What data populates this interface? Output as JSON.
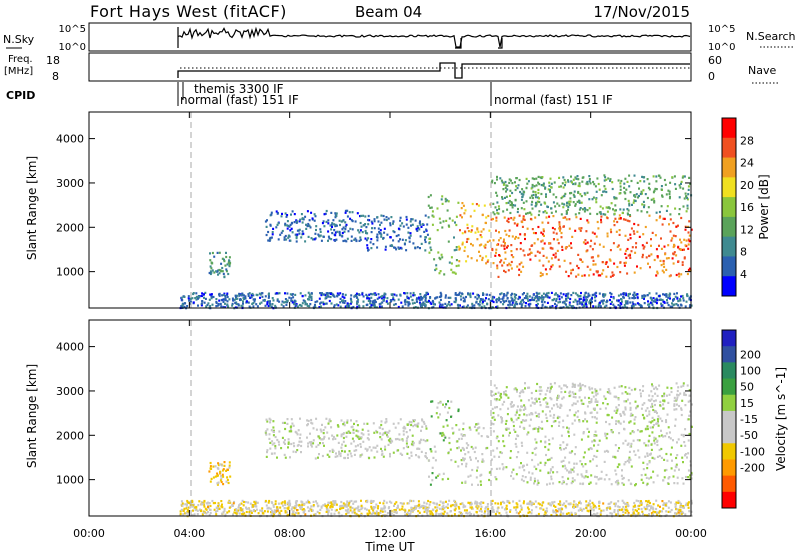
{
  "header": {
    "title": "Fort Hays West (fitACF)",
    "beam": "Beam 04",
    "date": "17/Nov/2015"
  },
  "strip_sky": {
    "left_label": "N.Sky",
    "right_label": "N.Search",
    "left_ticks": [
      "10^5",
      "10^0"
    ],
    "right_ticks": [
      "10^5",
      "10^0"
    ]
  },
  "strip_freq": {
    "left_label_1": "Freq.",
    "left_label_2": "[MHz]",
    "right_label": "Nave",
    "left_ticks": [
      "18",
      "8"
    ],
    "right_ticks": [
      "60",
      "0"
    ]
  },
  "cpid": {
    "label": "CPID",
    "segments": [
      {
        "text": "normal (fast) 151 IF",
        "start_hour": 3.6
      },
      {
        "text": "themis 3300 IF",
        "start_hour": 3.9
      },
      {
        "text": "normal (fast) 151 IF",
        "start_hour": 16.0
      }
    ]
  },
  "colors": {
    "power": [
      "#0000ff",
      "#2b60b0",
      "#3f8a90",
      "#5aa35a",
      "#8ac63c",
      "#f0e020",
      "#f0a020",
      "#f05020",
      "#ff0000"
    ],
    "velocity": [
      "#ff0000",
      "#ff5a00",
      "#ff9a00",
      "#f0c800",
      "#c8c8c8",
      "#c8c8c8",
      "#90d040",
      "#3aa040",
      "#2a8a60",
      "#3050a0",
      "#2020c0"
    ]
  },
  "chart_data": [
    {
      "type": "heatmap",
      "name": "power",
      "ylabel": "Slant Range [km]",
      "xlabel": "Time UT",
      "x_ticks": [
        "00:00",
        "04:00",
        "08:00",
        "12:00",
        "16:00",
        "20:00",
        "00:00"
      ],
      "x_range_hours": [
        0,
        24
      ],
      "y_ticks": [
        "1000",
        "2000",
        "3000",
        "4000"
      ],
      "y_range_km": [
        180,
        4600
      ],
      "colorbar": {
        "label": "Power [dB]",
        "ticks": [
          "4",
          "8",
          "12",
          "16",
          "20",
          "24",
          "28"
        ],
        "range": [
          0,
          32
        ]
      },
      "regions": [
        {
          "t0": 3.6,
          "t1": 24.0,
          "r0": 200,
          "r1": 550,
          "val": 6
        },
        {
          "t0": 4.7,
          "t1": 5.6,
          "r0": 900,
          "r1": 1450,
          "val": 10
        },
        {
          "t0": 7.0,
          "t1": 11.0,
          "r0": 1700,
          "r1": 2400,
          "val": 6
        },
        {
          "t0": 11.0,
          "t1": 13.5,
          "r0": 1500,
          "r1": 2300,
          "val": 6
        },
        {
          "t0": 13.5,
          "t1": 14.7,
          "r0": 900,
          "r1": 2800,
          "val": 13
        },
        {
          "t0": 14.7,
          "t1": 16.0,
          "r0": 1200,
          "r1": 2600,
          "val": 22
        },
        {
          "t0": 16.0,
          "t1": 24.0,
          "r0": 900,
          "r1": 2300,
          "val": 26
        },
        {
          "t0": 16.0,
          "t1": 24.0,
          "r0": 2300,
          "r1": 3200,
          "val": 12
        }
      ]
    },
    {
      "type": "heatmap",
      "name": "velocity",
      "ylabel": "Slant Range [km]",
      "xlabel": "Time UT",
      "x_ticks": [
        "00:00",
        "04:00",
        "08:00",
        "12:00",
        "16:00",
        "20:00",
        "00:00"
      ],
      "x_range_hours": [
        0,
        24
      ],
      "y_ticks": [
        "1000",
        "2000",
        "3000",
        "4000"
      ],
      "y_range_km": [
        180,
        4600
      ],
      "colorbar": {
        "label": "Velocity [m s^-1]",
        "ticks": [
          "200",
          "100",
          "50",
          "15",
          "-15",
          "-50",
          "-100",
          "-200"
        ],
        "range": [
          -250,
          250
        ]
      },
      "regions": [
        {
          "t0": 3.6,
          "t1": 24.0,
          "r0": 200,
          "r1": 550,
          "val": -60
        },
        {
          "t0": 4.7,
          "t1": 5.6,
          "r0": 900,
          "r1": 1450,
          "val": -80
        },
        {
          "t0": 7.0,
          "t1": 13.5,
          "r0": 1500,
          "r1": 2400,
          "val": 0
        },
        {
          "t0": 13.5,
          "t1": 14.7,
          "r0": 900,
          "r1": 2800,
          "val": 40
        },
        {
          "t0": 14.7,
          "t1": 24.0,
          "r0": 900,
          "r1": 2300,
          "val": 0
        },
        {
          "t0": 16.0,
          "t1": 24.0,
          "r0": 2300,
          "r1": 3200,
          "val": 0
        }
      ]
    }
  ]
}
